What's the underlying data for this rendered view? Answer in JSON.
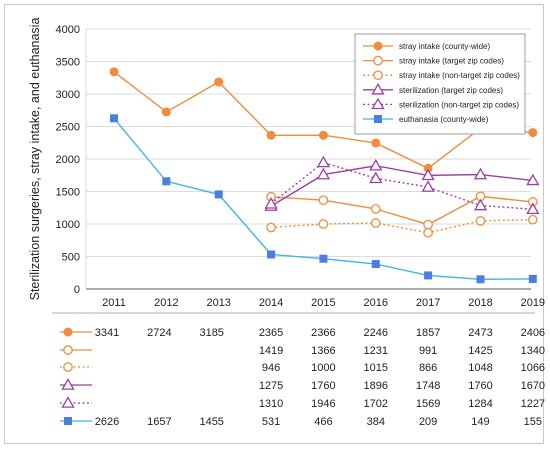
{
  "chart_data": {
    "type": "line",
    "ylabel": "Sterilization surgeries, stray intake, and euthanasia",
    "xlabel": "",
    "title": "",
    "ylim": [
      0,
      4000
    ],
    "yticks": [
      0,
      500,
      1000,
      1500,
      2000,
      2500,
      3000,
      3500,
      4000
    ],
    "categories": [
      "2011",
      "2012",
      "2013",
      "2014",
      "2015",
      "2016",
      "2017",
      "2018",
      "2019"
    ],
    "grid": "horizontal",
    "legend_position": "top-right",
    "series": [
      {
        "name": "stray intake (county-wide)",
        "color": "#f08c3c",
        "marker": "filled-circle",
        "dash": "solid",
        "values": [
          3341,
          2724,
          3185,
          2365,
          2366,
          2246,
          1857,
          2473,
          2406
        ]
      },
      {
        "name": "stray intake (target zip codes)",
        "color": "#f08c3c",
        "marker": "open-circle",
        "dash": "solid",
        "values": [
          null,
          null,
          null,
          1419,
          1366,
          1231,
          991,
          1425,
          1340
        ]
      },
      {
        "name": "stray intake (non-target zip codes)",
        "color": "#f08c3c",
        "marker": "open-circle",
        "dash": "dotted",
        "values": [
          null,
          null,
          null,
          946,
          1000,
          1015,
          866,
          1048,
          1066
        ]
      },
      {
        "name": "sterilization (target zip codes)",
        "color": "#9b3fa6",
        "marker": "open-triangle",
        "dash": "solid",
        "values": [
          null,
          null,
          null,
          1275,
          1760,
          1896,
          1748,
          1760,
          1670
        ]
      },
      {
        "name": "sterilization (non-target zip codes)",
        "color": "#9b3fa6",
        "marker": "open-triangle",
        "dash": "dotted",
        "values": [
          null,
          null,
          null,
          1310,
          1946,
          1702,
          1569,
          1284,
          1227
        ]
      },
      {
        "name": "euthanasia (county-wide)",
        "color": "#3fb5e0",
        "marker": "filled-square",
        "dash": "solid",
        "marker_color": "#4a7fe0",
        "values": [
          2626,
          1657,
          1455,
          531,
          466,
          384,
          209,
          149,
          155
        ]
      }
    ],
    "table": {
      "rows": [
        [
          "3341",
          "2724",
          "3185",
          "2365",
          "2366",
          "2246",
          "1857",
          "2473",
          "2406"
        ],
        [
          "",
          "",
          "",
          "1419",
          "1366",
          "1231",
          "991",
          "1425",
          "1340"
        ],
        [
          "",
          "",
          "",
          "946",
          "1000",
          "1015",
          "866",
          "1048",
          "1066"
        ],
        [
          "",
          "",
          "",
          "1275",
          "1760",
          "1896",
          "1748",
          "1760",
          "1670"
        ],
        [
          "",
          "",
          "",
          "1310",
          "1946",
          "1702",
          "1569",
          "1284",
          "1227"
        ],
        [
          "2626",
          "1657",
          "1455",
          "531",
          "466",
          "384",
          "209",
          "149",
          "155"
        ]
      ]
    }
  }
}
